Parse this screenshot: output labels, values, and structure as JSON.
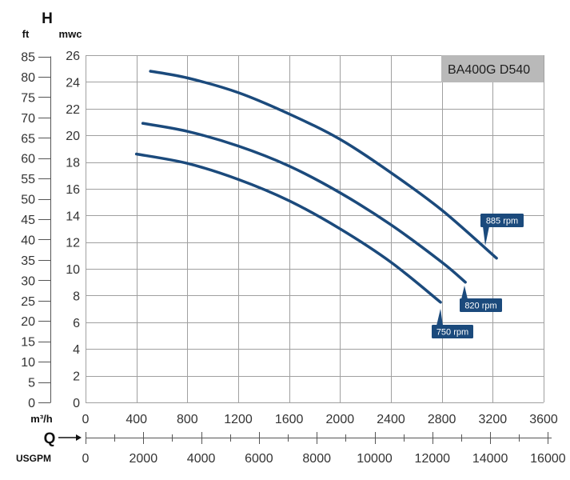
{
  "chart_data": {
    "type": "line",
    "title": "BA400G D540",
    "y_symbol": "H",
    "x_symbol": "Q",
    "y_axis": {
      "unit": "mwc",
      "range": [
        0,
        26
      ],
      "ticks": [
        0,
        2,
        4,
        6,
        8,
        10,
        12,
        14,
        16,
        18,
        20,
        22,
        24,
        26
      ]
    },
    "y2_axis": {
      "unit": "ft",
      "ticks": [
        0,
        5,
        10,
        15,
        20,
        25,
        30,
        35,
        40,
        45,
        50,
        55,
        60,
        65,
        70,
        75,
        80,
        85
      ]
    },
    "x_axis": {
      "unit": "m³/h",
      "range": [
        0,
        3600
      ],
      "ticks": [
        0,
        400,
        800,
        1200,
        1600,
        2000,
        2400,
        2800,
        3200,
        3600
      ]
    },
    "x2_axis": {
      "unit": "USGPM",
      "ticks": [
        0,
        2000,
        4000,
        6000,
        8000,
        10000,
        12000,
        14000,
        16000
      ]
    },
    "grid": true,
    "series": [
      {
        "name": "885 rpm",
        "x": [
          510,
          800,
          1200,
          1600,
          2000,
          2400,
          2800,
          3230
        ],
        "y": [
          24.8,
          24.3,
          23.2,
          21.6,
          19.7,
          17.2,
          14.4,
          10.8
        ]
      },
      {
        "name": "820 rpm",
        "x": [
          450,
          800,
          1200,
          1600,
          2000,
          2400,
          2800,
          2985
        ],
        "y": [
          20.9,
          20.3,
          19.2,
          17.7,
          15.7,
          13.3,
          10.5,
          9.0
        ]
      },
      {
        "name": "750 rpm",
        "x": [
          400,
          800,
          1200,
          1600,
          2000,
          2400,
          2790
        ],
        "y": [
          18.6,
          17.9,
          16.7,
          15.1,
          13.0,
          10.5,
          7.5
        ]
      }
    ],
    "colors": {
      "curve": "#1b4a7c",
      "rpm_label_bg": "#1b4a7c",
      "rpm_label_text": "#ffffff",
      "title_box": "#b9b9b9",
      "grid": "#a0a0a0",
      "axis": "#555555"
    }
  }
}
